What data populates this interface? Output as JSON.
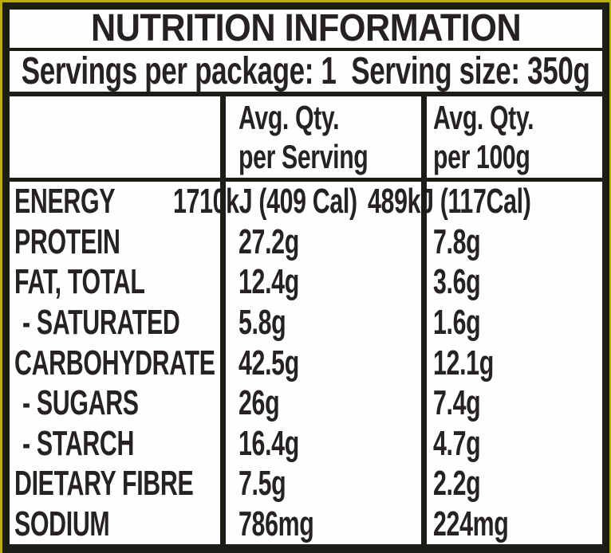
{
  "colors": {
    "background": "#b9af06",
    "border": "#1e1c17",
    "text": "#262223",
    "panel": "#fefefe"
  },
  "header": {
    "title": "NUTRITION INFORMATION",
    "servings_line": "Servings per package: 1  Serving size: 350g"
  },
  "table": {
    "columns": [
      {
        "line1": "Avg. Qty.",
        "line2": "per Serving"
      },
      {
        "line1": "Avg. Qty.",
        "line2": "per 100g"
      }
    ],
    "rows": [
      {
        "name": "ENERGY",
        "per_serving": "1710kJ (409 Cal)",
        "per_100g": "489kJ (117Cal)"
      },
      {
        "name": "PROTEIN",
        "per_serving": "27.2g",
        "per_100g": "7.8g"
      },
      {
        "name": "FAT, TOTAL",
        "per_serving": "12.4g",
        "per_100g": "3.6g"
      },
      {
        "name": "- SATURATED",
        "per_serving": "5.8g",
        "per_100g": "1.6g"
      },
      {
        "name": "CARBOHYDRATE",
        "per_serving": "42.5g",
        "per_100g": "12.1g"
      },
      {
        "name": "- SUGARS",
        "per_serving": "26g",
        "per_100g": "7.4g"
      },
      {
        "name": "- STARCH",
        "per_serving": "16.4g",
        "per_100g": "4.7g"
      },
      {
        "name": "DIETARY FIBRE",
        "per_serving": "7.5g",
        "per_100g": "2.2g"
      },
      {
        "name": "SODIUM",
        "per_serving": "786mg",
        "per_100g": "224mg"
      }
    ]
  }
}
